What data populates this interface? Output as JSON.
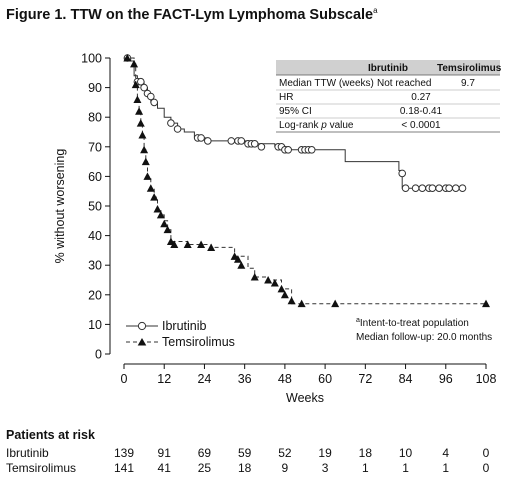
{
  "figure": {
    "title": "Figure 1. TTW on the FACT-Lym Lymphoma Subscale",
    "title_sup": "a"
  },
  "chart_data": {
    "type": "line",
    "title": "Figure 1. TTW on the FACT-Lym Lymphoma Subscale",
    "xlabel": "Weeks",
    "ylabel": "% without worsening",
    "xlim": [
      0,
      108
    ],
    "ylim": [
      0,
      100
    ],
    "xticks": [
      0,
      12,
      24,
      36,
      48,
      60,
      72,
      84,
      96,
      108
    ],
    "yticks": [
      0,
      10,
      20,
      30,
      40,
      50,
      60,
      70,
      80,
      90,
      100
    ],
    "grid": false,
    "legend": "bottom-left",
    "series": [
      {
        "name": "Ibrutinib",
        "style": "solid",
        "marker": "open-circle",
        "steps": [
          [
            0,
            100
          ],
          [
            2,
            99
          ],
          [
            3,
            94
          ],
          [
            4,
            92
          ],
          [
            6,
            90
          ],
          [
            7,
            88
          ],
          [
            8,
            85
          ],
          [
            10,
            83
          ],
          [
            12,
            80
          ],
          [
            14,
            78
          ],
          [
            16,
            76
          ],
          [
            18,
            75
          ],
          [
            21,
            73
          ],
          [
            25,
            72
          ],
          [
            33,
            72
          ],
          [
            38,
            71
          ],
          [
            45,
            70
          ],
          [
            49,
            69
          ],
          [
            57,
            69
          ],
          [
            62,
            69
          ],
          [
            66,
            65
          ],
          [
            82,
            62
          ],
          [
            83,
            56
          ],
          [
            101,
            56
          ]
        ],
        "censored": [
          [
            1,
            100
          ],
          [
            4,
            92
          ],
          [
            5,
            92
          ],
          [
            6,
            90
          ],
          [
            7,
            88
          ],
          [
            8,
            87
          ],
          [
            9,
            85
          ],
          [
            14,
            78
          ],
          [
            16,
            76
          ],
          [
            22,
            73
          ],
          [
            23,
            73
          ],
          [
            25,
            72
          ],
          [
            32,
            72
          ],
          [
            34,
            72
          ],
          [
            35,
            72
          ],
          [
            37,
            71
          ],
          [
            38,
            71
          ],
          [
            39,
            71
          ],
          [
            41,
            70
          ],
          [
            46,
            70
          ],
          [
            47,
            70
          ],
          [
            48,
            69
          ],
          [
            49,
            69
          ],
          [
            53,
            69
          ],
          [
            54,
            69
          ],
          [
            55,
            69
          ],
          [
            56,
            69
          ],
          [
            83,
            61
          ],
          [
            84,
            56
          ],
          [
            87,
            56
          ],
          [
            89,
            56
          ],
          [
            91,
            56
          ],
          [
            92,
            56
          ],
          [
            94,
            56
          ],
          [
            96,
            56
          ],
          [
            97,
            56
          ],
          [
            99,
            56
          ],
          [
            101,
            56
          ]
        ]
      },
      {
        "name": "Temsirolimus",
        "style": "dashed",
        "marker": "filled-triangle",
        "steps": [
          [
            0,
            100
          ],
          [
            2,
            100
          ],
          [
            3,
            98
          ],
          [
            3.5,
            91
          ],
          [
            4,
            86
          ],
          [
            4.5,
            82
          ],
          [
            5,
            78
          ],
          [
            5.5,
            74
          ],
          [
            6,
            69
          ],
          [
            6.5,
            65
          ],
          [
            7,
            60
          ],
          [
            8,
            56
          ],
          [
            9,
            53
          ],
          [
            10,
            49
          ],
          [
            11,
            47
          ],
          [
            12,
            45
          ],
          [
            13,
            42
          ],
          [
            14,
            38
          ],
          [
            19,
            37
          ],
          [
            23,
            37
          ],
          [
            26,
            36
          ],
          [
            32,
            36
          ],
          [
            33,
            33
          ],
          [
            37,
            29
          ],
          [
            39,
            26
          ],
          [
            43,
            25
          ],
          [
            47,
            22
          ],
          [
            50,
            17
          ],
          [
            108,
            17
          ]
        ],
        "censored": [
          [
            1,
            100
          ],
          [
            3,
            98
          ],
          [
            3.5,
            91
          ],
          [
            4,
            86
          ],
          [
            4.5,
            82
          ],
          [
            5,
            78
          ],
          [
            5.5,
            74
          ],
          [
            6,
            69
          ],
          [
            6.5,
            65
          ],
          [
            7,
            60
          ],
          [
            8,
            56
          ],
          [
            9,
            53
          ],
          [
            10,
            49
          ],
          [
            11,
            47
          ],
          [
            12,
            44
          ],
          [
            13,
            42
          ],
          [
            14,
            38
          ],
          [
            15,
            37
          ],
          [
            19,
            37
          ],
          [
            23,
            37
          ],
          [
            26,
            36
          ],
          [
            33,
            33
          ],
          [
            34,
            32
          ],
          [
            35,
            30
          ],
          [
            39,
            26
          ],
          [
            43,
            25
          ],
          [
            45,
            24
          ],
          [
            47,
            22
          ],
          [
            48,
            20
          ],
          [
            50,
            18
          ],
          [
            53,
            17
          ],
          [
            63,
            17
          ],
          [
            108,
            17
          ]
        ]
      }
    ],
    "legend_entries": [
      "Ibrutinib",
      "Temsirolimus"
    ]
  },
  "stats_table": {
    "headers": [
      "",
      "Ibrutinib",
      "Temsirolimus"
    ],
    "rows": [
      [
        "Median TTW (weeks)",
        "Not reached",
        "9.7"
      ],
      [
        "HR",
        "0.27",
        ""
      ],
      [
        "95% CI",
        "0.18-0.41",
        ""
      ],
      [
        "Log-rank p value",
        "< 0.0001",
        ""
      ]
    ]
  },
  "notes": {
    "line1_sup": "a",
    "line1": "Intent-to-treat population",
    "line2": "Median follow-up: 20.0 months"
  },
  "risk_table": {
    "title": "Patients at risk",
    "timepoints": [
      0,
      12,
      24,
      36,
      48,
      60,
      72,
      84,
      96,
      108
    ],
    "rows": [
      {
        "label": "Ibrutinib",
        "values": [
          139,
          91,
          69,
          59,
          52,
          19,
          18,
          10,
          4,
          0
        ]
      },
      {
        "label": "Temsirolimus",
        "values": [
          141,
          41,
          25,
          18,
          9,
          3,
          1,
          1,
          1,
          0
        ]
      }
    ]
  }
}
